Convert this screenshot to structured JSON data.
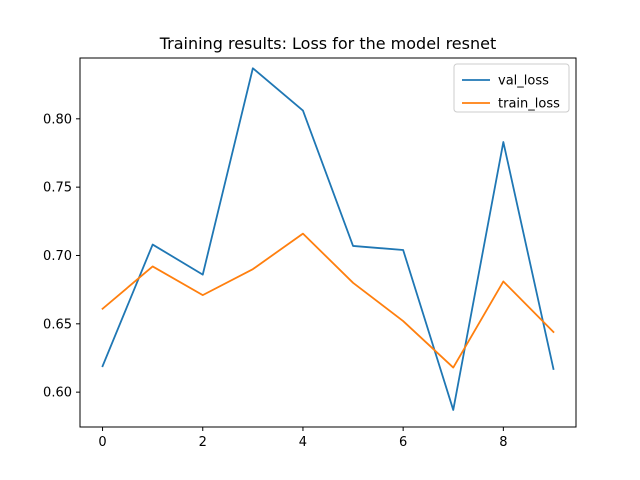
{
  "chart_data": {
    "type": "line",
    "title": "Training results: Loss for the model resnet",
    "xlabel": "",
    "ylabel": "",
    "x": [
      0,
      1,
      2,
      3,
      4,
      5,
      6,
      7,
      8,
      9
    ],
    "xlim": [
      -0.45,
      9.45
    ],
    "ylim": [
      0.5745,
      0.8445
    ],
    "xticks": [
      0,
      2,
      4,
      6,
      8
    ],
    "xtick_labels": [
      "0",
      "2",
      "4",
      "6",
      "8"
    ],
    "yticks": [
      0.6,
      0.65,
      0.7,
      0.75,
      0.8
    ],
    "ytick_labels": [
      "0.60",
      "0.65",
      "0.70",
      "0.75",
      "0.80"
    ],
    "grid": false,
    "legend": "top-right",
    "series": [
      {
        "name": "val_loss",
        "color": "#1f77b4",
        "values": [
          0.619,
          0.708,
          0.686,
          0.837,
          0.806,
          0.707,
          0.704,
          0.587,
          0.783,
          0.617
        ]
      },
      {
        "name": "train_loss",
        "color": "#ff7f0e",
        "values": [
          0.661,
          0.692,
          0.671,
          0.69,
          0.716,
          0.68,
          0.652,
          0.618,
          0.681,
          0.644
        ]
      }
    ]
  }
}
